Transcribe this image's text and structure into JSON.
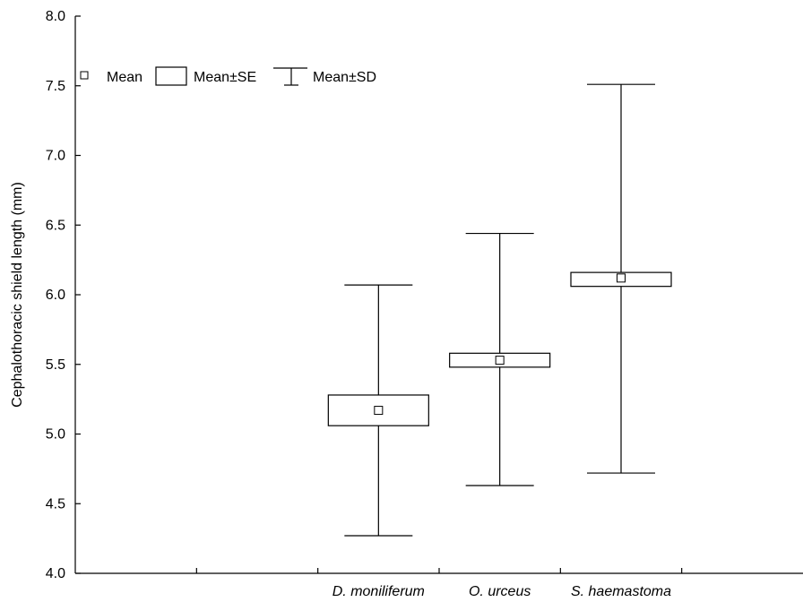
{
  "chart_data": {
    "type": "box",
    "title": "",
    "xlabel": "",
    "ylabel": "Cephalothoracic shield length (mm)",
    "ylim": [
      4.0,
      8.0
    ],
    "yticks": [
      "4.0",
      "4.5",
      "5.0",
      "5.5",
      "6.0",
      "6.5",
      "7.0",
      "7.5",
      "8.0"
    ],
    "legend": {
      "placement": "top-left",
      "items": [
        "Mean",
        "Mean±SE",
        "Mean±SD"
      ]
    },
    "categories": [
      "D. moniliferum",
      "O. urceus",
      "S. haemastoma"
    ],
    "series": [
      {
        "mean": 5.17,
        "se_low": 5.06,
        "se_high": 5.28,
        "sd_low": 4.27,
        "sd_high": 6.07
      },
      {
        "mean": 5.53,
        "se_low": 5.48,
        "se_high": 5.58,
        "sd_low": 4.63,
        "sd_high": 6.44
      },
      {
        "mean": 6.12,
        "se_low": 6.06,
        "se_high": 6.16,
        "sd_low": 4.72,
        "sd_high": 7.51
      }
    ],
    "grid": false,
    "colors": {
      "line": "#000000",
      "box_fill": "#ffffff"
    }
  }
}
